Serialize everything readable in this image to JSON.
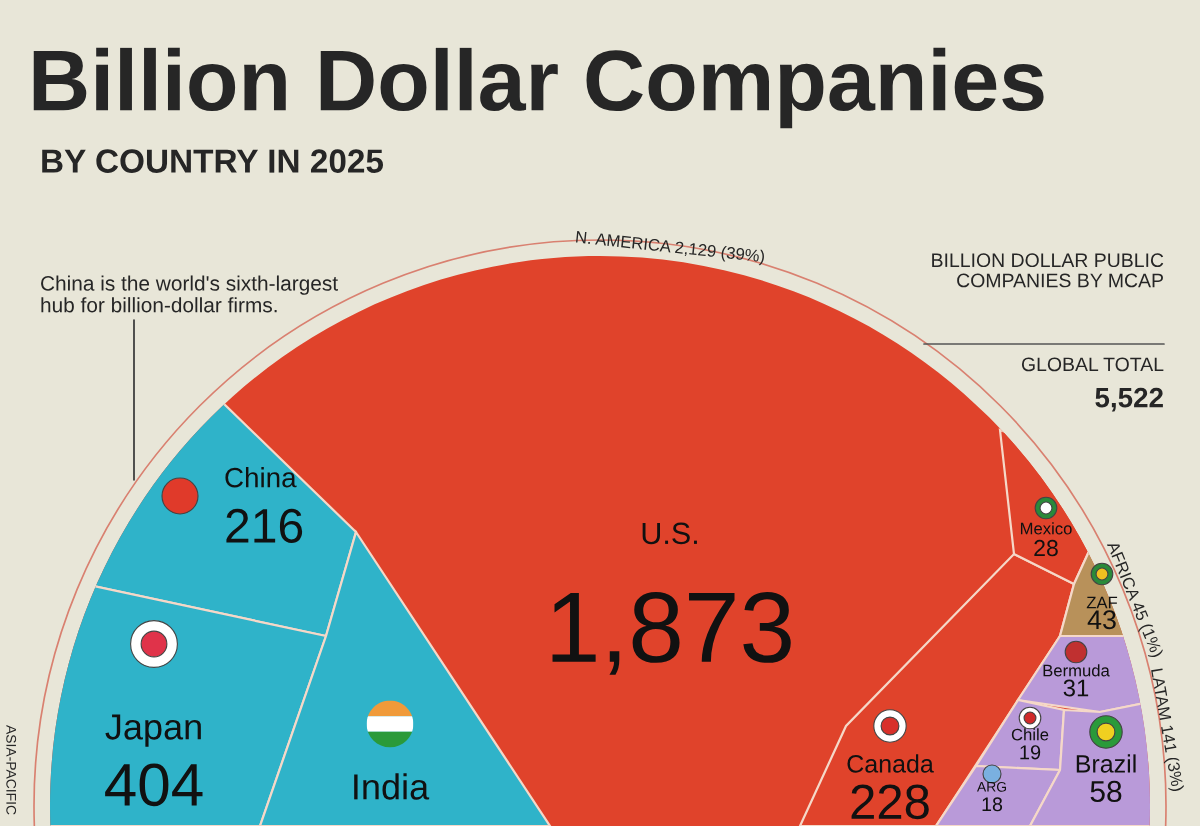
{
  "chart_data": {
    "type": "other",
    "title": "Billion Dollar Companies",
    "subtitle": "BY COUNTRY IN 2025",
    "categories": [
      "U.S.",
      "China",
      "Japan",
      "India",
      "Canada",
      "Mexico",
      "ZAF",
      "Bermuda",
      "Chile",
      "ARG",
      "Brazil"
    ],
    "values": [
      1873,
      216,
      404,
      null,
      228,
      28,
      43,
      31,
      19,
      18,
      58
    ],
    "value_labels": [
      "1,873",
      "216",
      "404",
      null,
      "228",
      "28",
      "43",
      "31",
      "19",
      "18",
      "58"
    ],
    "colors": [
      "#e0432b",
      "#2fb3c9",
      "#2fb3c9",
      "#2fb3c9",
      "#e0432b",
      "#e0432b",
      "#b8915a",
      "#b99ad9",
      "#b99ad9",
      "#b99ad9",
      "#b99ad9"
    ],
    "annotations": [
      "China is the world's sixth-largest hub for billion-dollar firms.",
      "N. AMERICA 2,129 (39%)",
      "AFRICA 45 (1%)",
      "LATAM 141 (3%)",
      "ASIA-PACIFIC",
      "BILLION DOLLAR PUBLIC COMPANIES BY MCAP",
      "GLOBAL TOTAL",
      "5,522"
    ]
  }
}
